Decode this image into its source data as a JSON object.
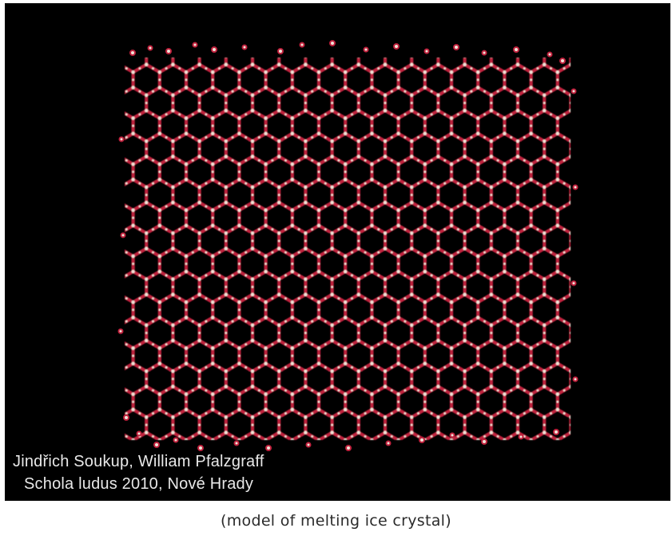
{
  "image": {
    "subject": "ice-crystal-lattice",
    "background_color": "#000000",
    "bond_color": "#c0213d",
    "atom_color": "#f1e3d8"
  },
  "credits": {
    "line1": "Jindřich Soukup, William Pfalzgraff",
    "line2": "Schola ludus 2010, Nové Hrady"
  },
  "caption": "(model of melting ice crystal)"
}
